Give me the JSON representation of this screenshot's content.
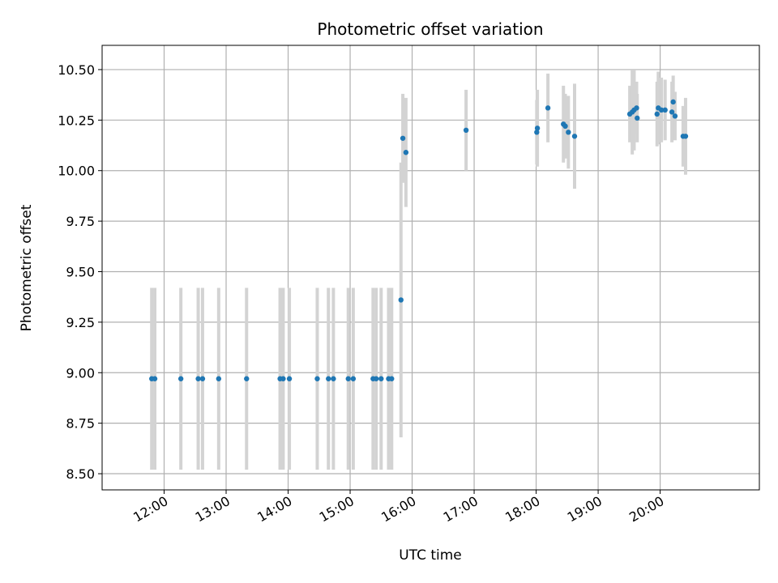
{
  "chart_data": {
    "type": "scatter",
    "title": "Photometric offset variation",
    "xlabel": "UTC time",
    "ylabel": "Photometric offset",
    "grid": true,
    "x_unit": "hours UTC",
    "xlim": [
      11.0,
      21.6
    ],
    "ylim": [
      8.42,
      10.62
    ],
    "xticks": [
      {
        "value": 12,
        "label": "12:00"
      },
      {
        "value": 13,
        "label": "13:00"
      },
      {
        "value": 14,
        "label": "14:00"
      },
      {
        "value": 15,
        "label": "15:00"
      },
      {
        "value": 16,
        "label": "16:00"
      },
      {
        "value": 17,
        "label": "17:00"
      },
      {
        "value": 18,
        "label": "18:00"
      },
      {
        "value": 19,
        "label": "19:00"
      },
      {
        "value": 20,
        "label": "20:00"
      }
    ],
    "yticks": [
      {
        "value": 8.5,
        "label": "8.50"
      },
      {
        "value": 8.75,
        "label": "8.75"
      },
      {
        "value": 9.0,
        "label": "9.00"
      },
      {
        "value": 9.25,
        "label": "9.25"
      },
      {
        "value": 9.5,
        "label": "9.50"
      },
      {
        "value": 9.75,
        "label": "9.75"
      },
      {
        "value": 10.0,
        "label": "10.00"
      },
      {
        "value": 10.25,
        "label": "10.25"
      },
      {
        "value": 10.5,
        "label": "10.50"
      }
    ],
    "colors": {
      "point": "#1f77b4",
      "errorbar": "#d3d3d3",
      "grid": "#b0b0b0",
      "axes": "#000000"
    },
    "series": [
      {
        "name": "offset",
        "x": [
          11.8,
          11.85,
          12.27,
          12.55,
          12.62,
          12.88,
          13.33,
          13.87,
          13.92,
          14.02,
          14.47,
          14.65,
          14.73,
          14.97,
          15.05,
          15.37,
          15.42,
          15.5,
          15.62,
          15.67,
          15.82,
          15.85,
          15.9,
          16.87,
          18.01,
          18.02,
          18.19,
          18.44,
          18.47,
          18.52,
          18.62,
          19.51,
          19.55,
          19.58,
          19.62,
          19.63,
          19.95,
          19.97,
          20.02,
          20.08,
          20.19,
          20.21,
          20.24,
          20.37,
          20.41
        ],
        "y": [
          8.97,
          8.97,
          8.97,
          8.97,
          8.97,
          8.97,
          8.97,
          8.97,
          8.97,
          8.97,
          8.97,
          8.97,
          8.97,
          8.97,
          8.97,
          8.97,
          8.97,
          8.97,
          8.97,
          8.97,
          9.36,
          10.16,
          10.09,
          10.2,
          10.19,
          10.21,
          10.31,
          10.23,
          10.22,
          10.19,
          10.17,
          10.28,
          10.29,
          10.3,
          10.31,
          10.26,
          10.28,
          10.31,
          10.3,
          10.3,
          10.29,
          10.34,
          10.27,
          10.17,
          10.17
        ],
        "err": [
          0.45,
          0.45,
          0.45,
          0.45,
          0.45,
          0.45,
          0.45,
          0.45,
          0.45,
          0.45,
          0.45,
          0.45,
          0.45,
          0.45,
          0.45,
          0.45,
          0.45,
          0.45,
          0.45,
          0.45,
          0.68,
          0.22,
          0.27,
          0.2,
          0.16,
          0.19,
          0.17,
          0.19,
          0.16,
          0.18,
          0.26,
          0.14,
          0.21,
          0.2,
          0.13,
          0.12,
          0.16,
          0.18,
          0.16,
          0.15,
          0.15,
          0.13,
          0.12,
          0.15,
          0.19
        ]
      }
    ]
  }
}
